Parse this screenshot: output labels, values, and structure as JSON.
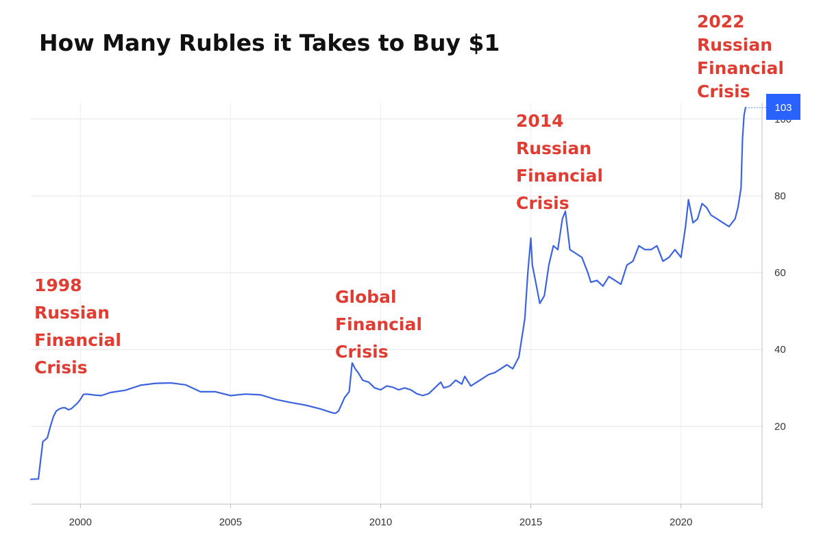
{
  "chart_data": {
    "type": "line",
    "title": "How Many Rubles it Takes to Buy $1",
    "xlabel": "",
    "ylabel": "",
    "xlim": [
      1998.35,
      2023.0
    ],
    "ylim": [
      0,
      105
    ],
    "x_ticks": [
      2000,
      2005,
      2010,
      2015,
      2020
    ],
    "y_ticks": [
      20,
      40,
      60,
      80,
      100
    ],
    "grid": true,
    "last_value_label": "103",
    "colors": {
      "line": "#3b63e0",
      "annotation": "#e03c31",
      "badge": "#2962ff"
    },
    "series": [
      {
        "x": [
          1998.35,
          1998.6,
          1998.75,
          1998.9,
          1999.0,
          1999.1,
          1999.2,
          1999.3,
          1999.4,
          1999.5,
          1999.6,
          1999.7,
          1999.8,
          1999.9,
          2000.0,
          2000.1,
          2000.2,
          2000.5,
          2000.7,
          2001.0,
          2001.5,
          2002.0,
          2002.5,
          2003.0,
          2003.5,
          2004.0,
          2004.5,
          2005.0,
          2005.5,
          2006.0,
          2006.5,
          2007.0,
          2007.5,
          2008.0,
          2008.2,
          2008.4,
          2008.5,
          2008.6,
          2008.8,
          2008.95,
          2009.05,
          2009.15,
          2009.25,
          2009.4,
          2009.6,
          2009.8,
          2010.0,
          2010.2,
          2010.4,
          2010.6,
          2010.8,
          2011.0,
          2011.2,
          2011.4,
          2011.6,
          2011.8,
          2012.0,
          2012.1,
          2012.3,
          2012.5,
          2012.7,
          2012.8,
          2013.0,
          2013.2,
          2013.4,
          2013.6,
          2013.8,
          2014.0,
          2014.2,
          2014.4,
          2014.6,
          2014.8,
          2014.9,
          2015.0,
          2015.05,
          2015.15,
          2015.3,
          2015.45,
          2015.6,
          2015.75,
          2015.9,
          2016.05,
          2016.15,
          2016.3,
          2016.5,
          2016.7,
          2016.9,
          2017.0,
          2017.2,
          2017.4,
          2017.6,
          2017.8,
          2018.0,
          2018.2,
          2018.4,
          2018.6,
          2018.8,
          2019.0,
          2019.2,
          2019.4,
          2019.6,
          2019.8,
          2020.0,
          2020.15,
          2020.25,
          2020.4,
          2020.55,
          2020.7,
          2020.85,
          2021.0,
          2021.2,
          2021.4,
          2021.6,
          2021.8,
          2021.9,
          2022.0,
          2022.05,
          2022.1,
          2022.15
        ],
        "y": [
          6.2,
          6.3,
          16.0,
          17.0,
          20.0,
          22.5,
          24.0,
          24.5,
          24.8,
          24.8,
          24.3,
          24.6,
          25.3,
          26.0,
          27.0,
          28.3,
          28.4,
          28.1,
          28.0,
          28.8,
          29.4,
          30.7,
          31.2,
          31.3,
          30.8,
          29.0,
          29.0,
          28.0,
          28.4,
          28.2,
          27.0,
          26.2,
          25.5,
          24.5,
          24.0,
          23.5,
          23.4,
          24.0,
          27.5,
          29.0,
          36.5,
          35.0,
          34.0,
          32.0,
          31.5,
          30.0,
          29.5,
          30.5,
          30.2,
          29.5,
          30.0,
          29.5,
          28.5,
          28.0,
          28.5,
          30.0,
          31.5,
          30.0,
          30.5,
          32.0,
          31.0,
          33.0,
          30.5,
          31.5,
          32.5,
          33.5,
          34.0,
          35.0,
          36.0,
          35.0,
          38.0,
          48.0,
          60.0,
          69.0,
          62.0,
          58.0,
          52.0,
          54.0,
          62.0,
          67.0,
          66.0,
          74.0,
          76.0,
          66.0,
          65.0,
          64.0,
          60.0,
          57.5,
          58.0,
          56.5,
          59.0,
          58.0,
          57.0,
          62.0,
          63.0,
          67.0,
          66.0,
          66.0,
          67.0,
          63.0,
          64.0,
          66.0,
          64.0,
          72.0,
          79.0,
          73.0,
          74.0,
          78.0,
          77.0,
          75.0,
          74.0,
          73.0,
          72.0,
          74.0,
          77.0,
          82.0,
          95.0,
          101.0,
          103.0
        ]
      }
    ],
    "annotations": [
      {
        "lines": [
          "1998",
          "Russian",
          "Financial",
          "Crisis"
        ]
      },
      {
        "lines": [
          "Global",
          "Financial",
          "Crisis"
        ]
      },
      {
        "lines": [
          "2014",
          "Russian",
          "Financial",
          "Crisis"
        ]
      },
      {
        "lines": [
          "2022",
          "Russian",
          "Financial",
          "Crisis"
        ]
      }
    ]
  }
}
